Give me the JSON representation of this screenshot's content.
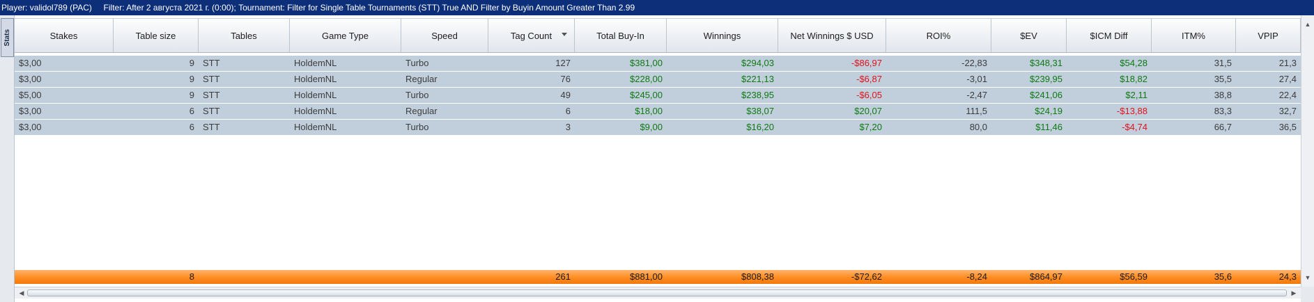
{
  "filter_bar": {
    "player_label": "Player:",
    "player_value": "validol789 (PAC)",
    "filter_label": "Filter:",
    "filter_value": "After 2 августа 2021 г. (0:00); Tournament: Filter for Single Table Tournaments (STT) True AND Filter by Buyin Amount Greater Than 2.99"
  },
  "side_tab": {
    "label": "Stats"
  },
  "columns": [
    "Stakes",
    "Table size",
    "Tables",
    "Game Type",
    "Speed",
    "Tag Count",
    "Total Buy-In",
    "Winnings",
    "Net Winnings $ USD",
    "ROI%",
    "$EV",
    "$ICM Diff",
    "ITM%",
    "VPIP"
  ],
  "sort_column": "Tag Count",
  "rows": [
    [
      "$3,00",
      "9",
      "STT",
      "HoldemNL",
      "Turbo",
      "127",
      "$381,00",
      "$294,03",
      "-$86,97",
      "-22,83",
      "$348,31",
      "$54,28",
      "31,5",
      "21,3"
    ],
    [
      "$3,00",
      "9",
      "STT",
      "HoldemNL",
      "Regular",
      "76",
      "$228,00",
      "$221,13",
      "-$6,87",
      "-3,01",
      "$239,95",
      "$18,82",
      "35,5",
      "27,4"
    ],
    [
      "$5,00",
      "9",
      "STT",
      "HoldemNL",
      "Turbo",
      "49",
      "$245,00",
      "$238,95",
      "-$6,05",
      "-2,47",
      "$241,06",
      "$2,11",
      "38,8",
      "22,4"
    ],
    [
      "$3,00",
      "6",
      "STT",
      "HoldemNL",
      "Regular",
      "6",
      "$18,00",
      "$38,07",
      "$20,07",
      "111,5",
      "$24,19",
      "-$13,88",
      "83,3",
      "32,7"
    ],
    [
      "$3,00",
      "6",
      "STT",
      "HoldemNL",
      "Turbo",
      "3",
      "$9,00",
      "$16,20",
      "$7,20",
      "80,0",
      "$11,46",
      "-$4,74",
      "66,7",
      "36,5"
    ]
  ],
  "totals": [
    "",
    "8",
    "",
    "",
    "",
    "261",
    "$881,00",
    "$808,38",
    "-$72,62",
    "-8,24",
    "$864,97",
    "$56,59",
    "35,6",
    "24,3"
  ],
  "colors": {
    "positive": "#0d7a12",
    "negative": "#e0121c",
    "row_background": "#c1cedb",
    "totals_background": "#ff8c21",
    "filter_bar_background": "#0d2f7a"
  },
  "icons": {
    "sort": "sort-descending-icon",
    "scroll_left": "arrow-left-icon",
    "scroll_right": "arrow-right-icon",
    "scroll_up": "arrow-up-icon",
    "scroll_down": "arrow-down-icon"
  }
}
